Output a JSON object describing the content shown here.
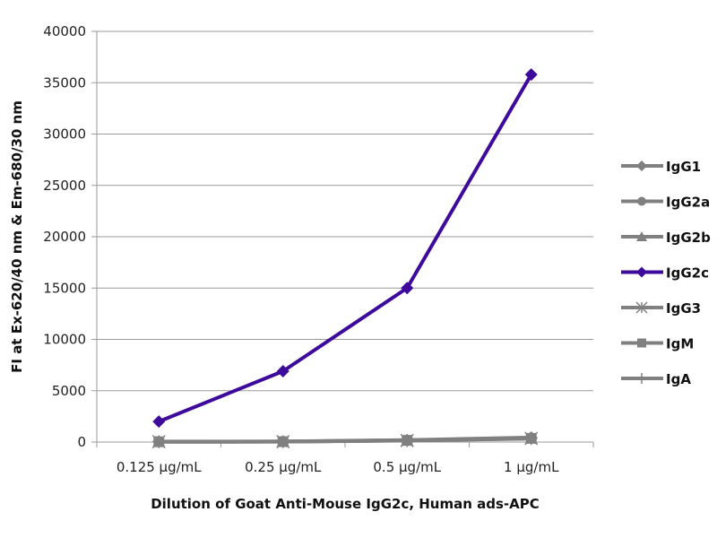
{
  "chart_data": {
    "type": "line",
    "title": "",
    "xlabel": "Dilution of Goat Anti-Mouse IgG2c, Human ads-APC",
    "ylabel": "FI at Ex-620/40 nm & Em-680/30 nm",
    "categories": [
      "0.125 µg/mL",
      "0.25 µg/mL",
      "0.5 µg/mL",
      "1 µg/mL"
    ],
    "ylim": [
      0,
      40000
    ],
    "yticks": [
      0,
      5000,
      10000,
      15000,
      20000,
      25000,
      30000,
      35000,
      40000
    ],
    "grid": true,
    "legend_position": "right",
    "series": [
      {
        "name": "IgG1",
        "marker": "diamond",
        "color": "#808080",
        "values": [
          50,
          60,
          200,
          450
        ]
      },
      {
        "name": "IgG2a",
        "marker": "circle",
        "color": "#808080",
        "values": [
          40,
          50,
          180,
          400
        ]
      },
      {
        "name": "IgG2b",
        "marker": "triangle",
        "color": "#808080",
        "values": [
          40,
          50,
          170,
          380
        ]
      },
      {
        "name": "IgG2c",
        "marker": "diamond",
        "color": "#3d0a9c",
        "values": [
          2000,
          6900,
          15000,
          35800
        ]
      },
      {
        "name": "IgG3",
        "marker": "star",
        "color": "#808080",
        "values": [
          30,
          40,
          150,
          350
        ]
      },
      {
        "name": "IgM",
        "marker": "square",
        "color": "#808080",
        "values": [
          30,
          40,
          160,
          360
        ]
      },
      {
        "name": "IgA",
        "marker": "plus",
        "color": "#808080",
        "values": [
          20,
          30,
          140,
          330
        ]
      }
    ]
  }
}
